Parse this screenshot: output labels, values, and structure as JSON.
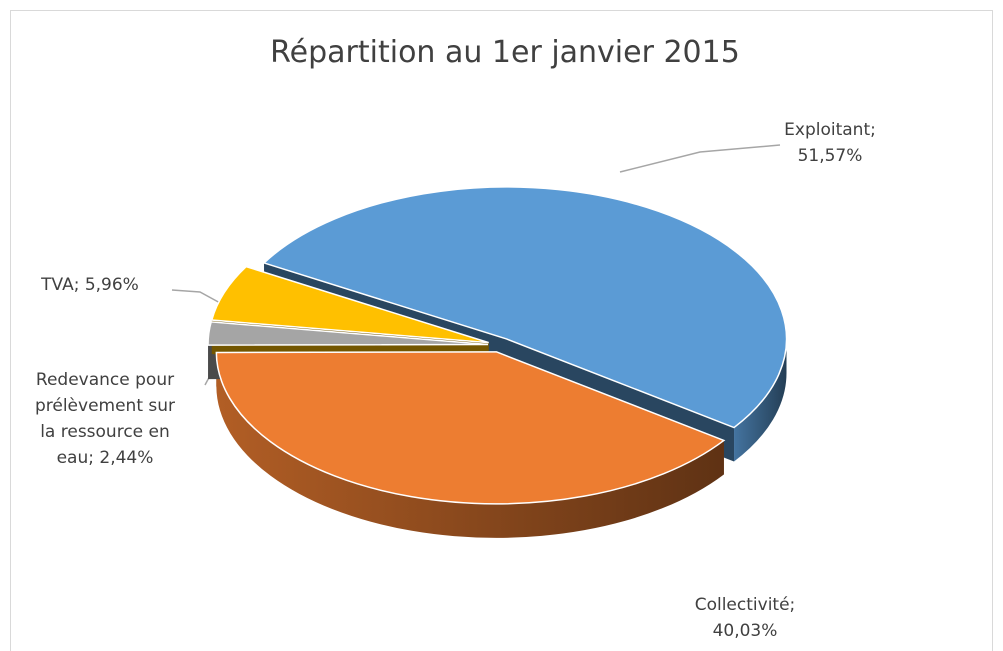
{
  "chart_data": {
    "type": "pie3d",
    "title": "Répartition au 1er janvier 2015",
    "values": [
      51.57,
      40.03,
      2.44,
      5.96
    ],
    "value_labels": [
      "Exploitant; 51,57%",
      "Collectivité; 40,03%",
      "Redevance pour prélèvement sur la ressource en eau; 2,44%",
      "TVA; 5,96%"
    ],
    "colors": [
      "#5b9bd5",
      "#ed7d31",
      "#a5a5a5",
      "#ffc000"
    ]
  }
}
